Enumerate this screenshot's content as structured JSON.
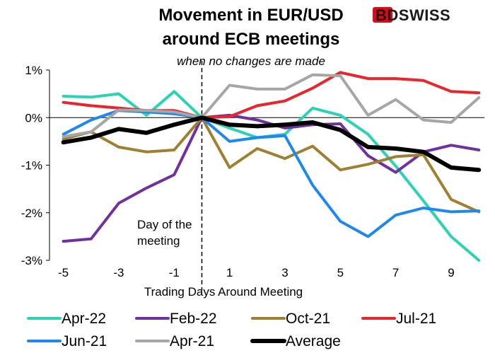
{
  "brand": {
    "logo_text": "BDSWISS",
    "accent": "#e30613"
  },
  "chart_data": {
    "type": "line",
    "title_lines": [
      "Movement in EUR/USD",
      "around ECB meetings"
    ],
    "subtitle": "when no changes are made",
    "xlabel": "Trading Days Around Meeting",
    "ylabel": "",
    "x": [
      -5,
      -4,
      -3,
      -2,
      -1,
      0,
      1,
      2,
      3,
      4,
      5,
      6,
      7,
      8,
      9,
      10
    ],
    "x_tick_values": [
      -5,
      -3,
      -1,
      1,
      3,
      5,
      7,
      9
    ],
    "x_tick_labels": [
      "-5",
      "-3",
      "-1",
      "1",
      "3",
      "5",
      "7",
      "9"
    ],
    "xlim": [
      -5.5,
      10.2
    ],
    "ylim": [
      -3,
      1
    ],
    "y_tick_values": [
      1,
      0,
      -1,
      -2,
      -3
    ],
    "y_tick_labels": [
      "1%",
      "0%",
      "-1%",
      "-2%",
      "-3%"
    ],
    "grid": false,
    "vline": {
      "x": 0,
      "style": "dashed"
    },
    "annotation": [
      "Day of the",
      "meeting"
    ],
    "legend_position": "bottom",
    "series": [
      {
        "name": "Apr-22",
        "color": "#29d3b4",
        "width": 4,
        "values": [
          0.45,
          0.43,
          0.5,
          0.05,
          0.55,
          0.0,
          -0.22,
          -0.42,
          -0.35,
          0.2,
          0.05,
          -0.35,
          -1.02,
          -1.75,
          -2.5,
          -3.0
        ]
      },
      {
        "name": "Feb-22",
        "color": "#7030a0",
        "width": 4,
        "values": [
          -2.6,
          -2.55,
          -1.8,
          -1.48,
          -1.2,
          0.0,
          0.05,
          -0.05,
          -0.22,
          -0.15,
          -0.13,
          -0.8,
          -1.15,
          -0.72,
          -0.58,
          -0.68
        ]
      },
      {
        "name": "Oct-21",
        "color": "#a08030",
        "width": 4,
        "values": [
          -0.45,
          -0.3,
          -0.62,
          -0.72,
          -0.68,
          0.0,
          -1.05,
          -0.65,
          -0.86,
          -0.6,
          -1.1,
          -0.98,
          -0.82,
          -0.78,
          -1.72,
          -1.98
        ]
      },
      {
        "name": "Jul-21",
        "color": "#e8252b",
        "width": 4,
        "values": [
          0.32,
          0.25,
          0.2,
          0.15,
          0.15,
          0.0,
          0.02,
          0.25,
          0.35,
          0.62,
          0.95,
          0.82,
          0.82,
          0.78,
          0.55,
          0.52
        ]
      },
      {
        "name": "Jun-21",
        "color": "#1e88f0",
        "width": 4,
        "values": [
          -0.35,
          -0.05,
          0.15,
          0.12,
          0.08,
          0.0,
          -0.5,
          -0.42,
          -0.38,
          -1.42,
          -2.18,
          -2.5,
          -2.05,
          -1.9,
          -1.98,
          -1.96
        ]
      },
      {
        "name": "Apr-21",
        "color": "#a6a6a6",
        "width": 4,
        "values": [
          -0.4,
          -0.3,
          0.16,
          0.15,
          0.12,
          0.0,
          0.68,
          0.6,
          0.6,
          0.9,
          0.88,
          0.05,
          0.38,
          -0.05,
          -0.1,
          0.42
        ]
      },
      {
        "name": "Average",
        "color": "#000000",
        "width": 6,
        "values": [
          -0.52,
          -0.42,
          -0.24,
          -0.32,
          -0.15,
          0.0,
          -0.15,
          -0.18,
          -0.15,
          -0.1,
          -0.26,
          -0.62,
          -0.65,
          -0.72,
          -1.05,
          -1.1
        ]
      }
    ]
  }
}
